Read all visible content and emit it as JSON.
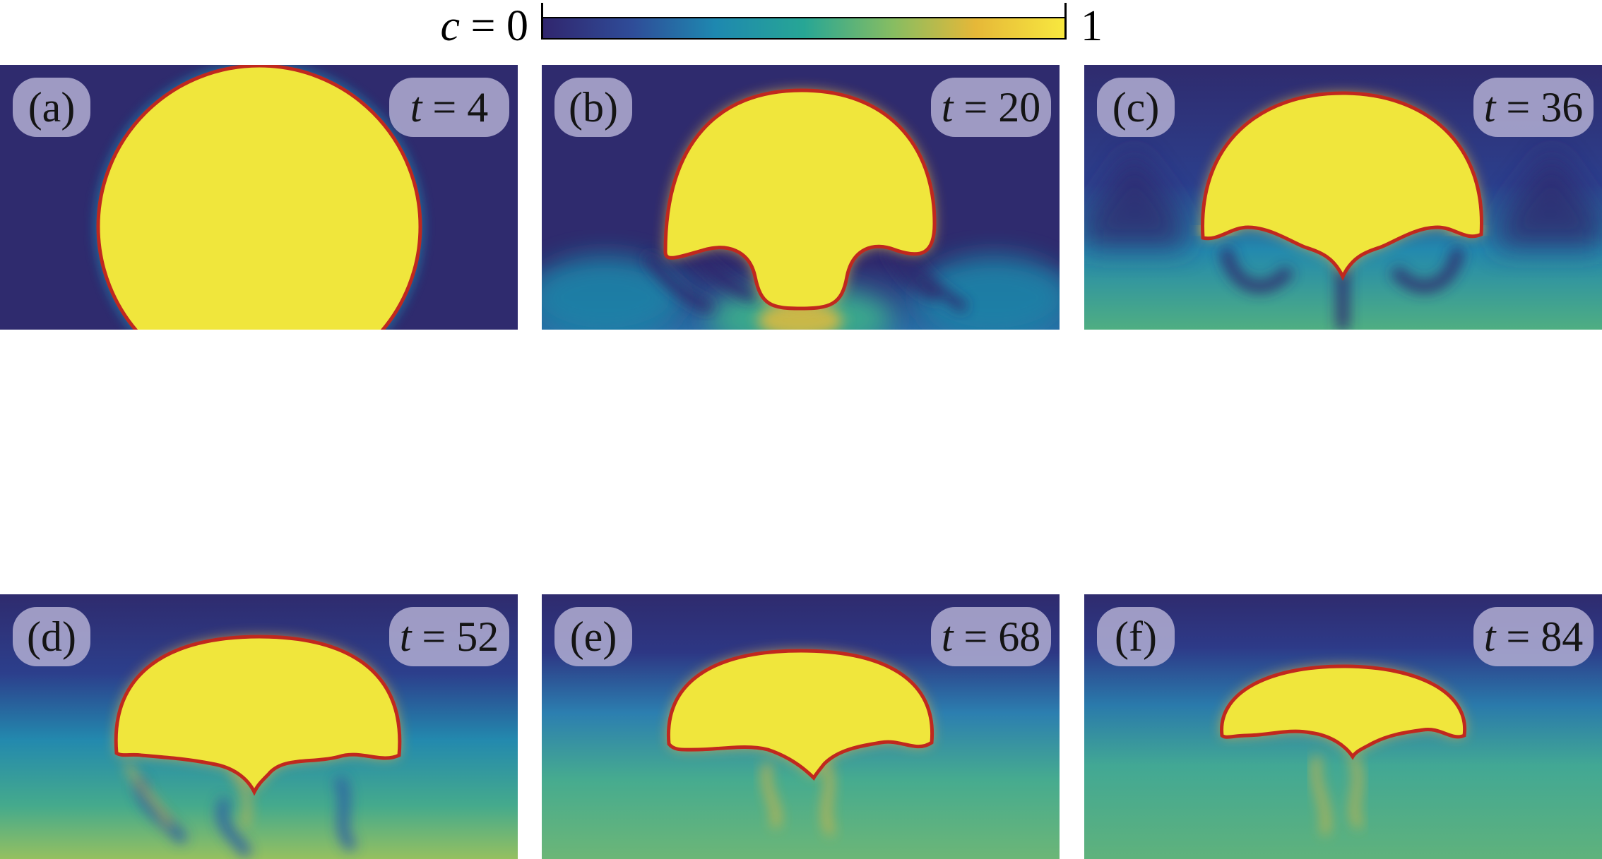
{
  "colorbar": {
    "var": "c",
    "min_text": " = 0",
    "max_text": "1",
    "colors": [
      "#30266e",
      "#2f4c98",
      "#1e88b0",
      "#27a695",
      "#86bd62",
      "#e6b838",
      "#f8e83f"
    ]
  },
  "panels": [
    {
      "label": "(a)",
      "tvar": "t",
      "tval": " = 4"
    },
    {
      "label": "(b)",
      "tvar": "t",
      "tval": " = 20"
    },
    {
      "label": "(c)",
      "tvar": "t",
      "tval": " = 36"
    },
    {
      "label": "(d)",
      "tvar": "t",
      "tval": " = 52"
    },
    {
      "label": "(e)",
      "tvar": "t",
      "tval": " = 68"
    },
    {
      "label": "(f)",
      "tvar": "t",
      "tval": " = 84"
    }
  ],
  "colors": {
    "background_low": "#2f2b6e",
    "blob": "#f0e63c",
    "interface": "#c0281e",
    "mixed_low": "#1f83a8",
    "mixed_mid": "#3aa98c",
    "mixed_high": "#8fbe55",
    "label_box": "#b2aed2"
  }
}
